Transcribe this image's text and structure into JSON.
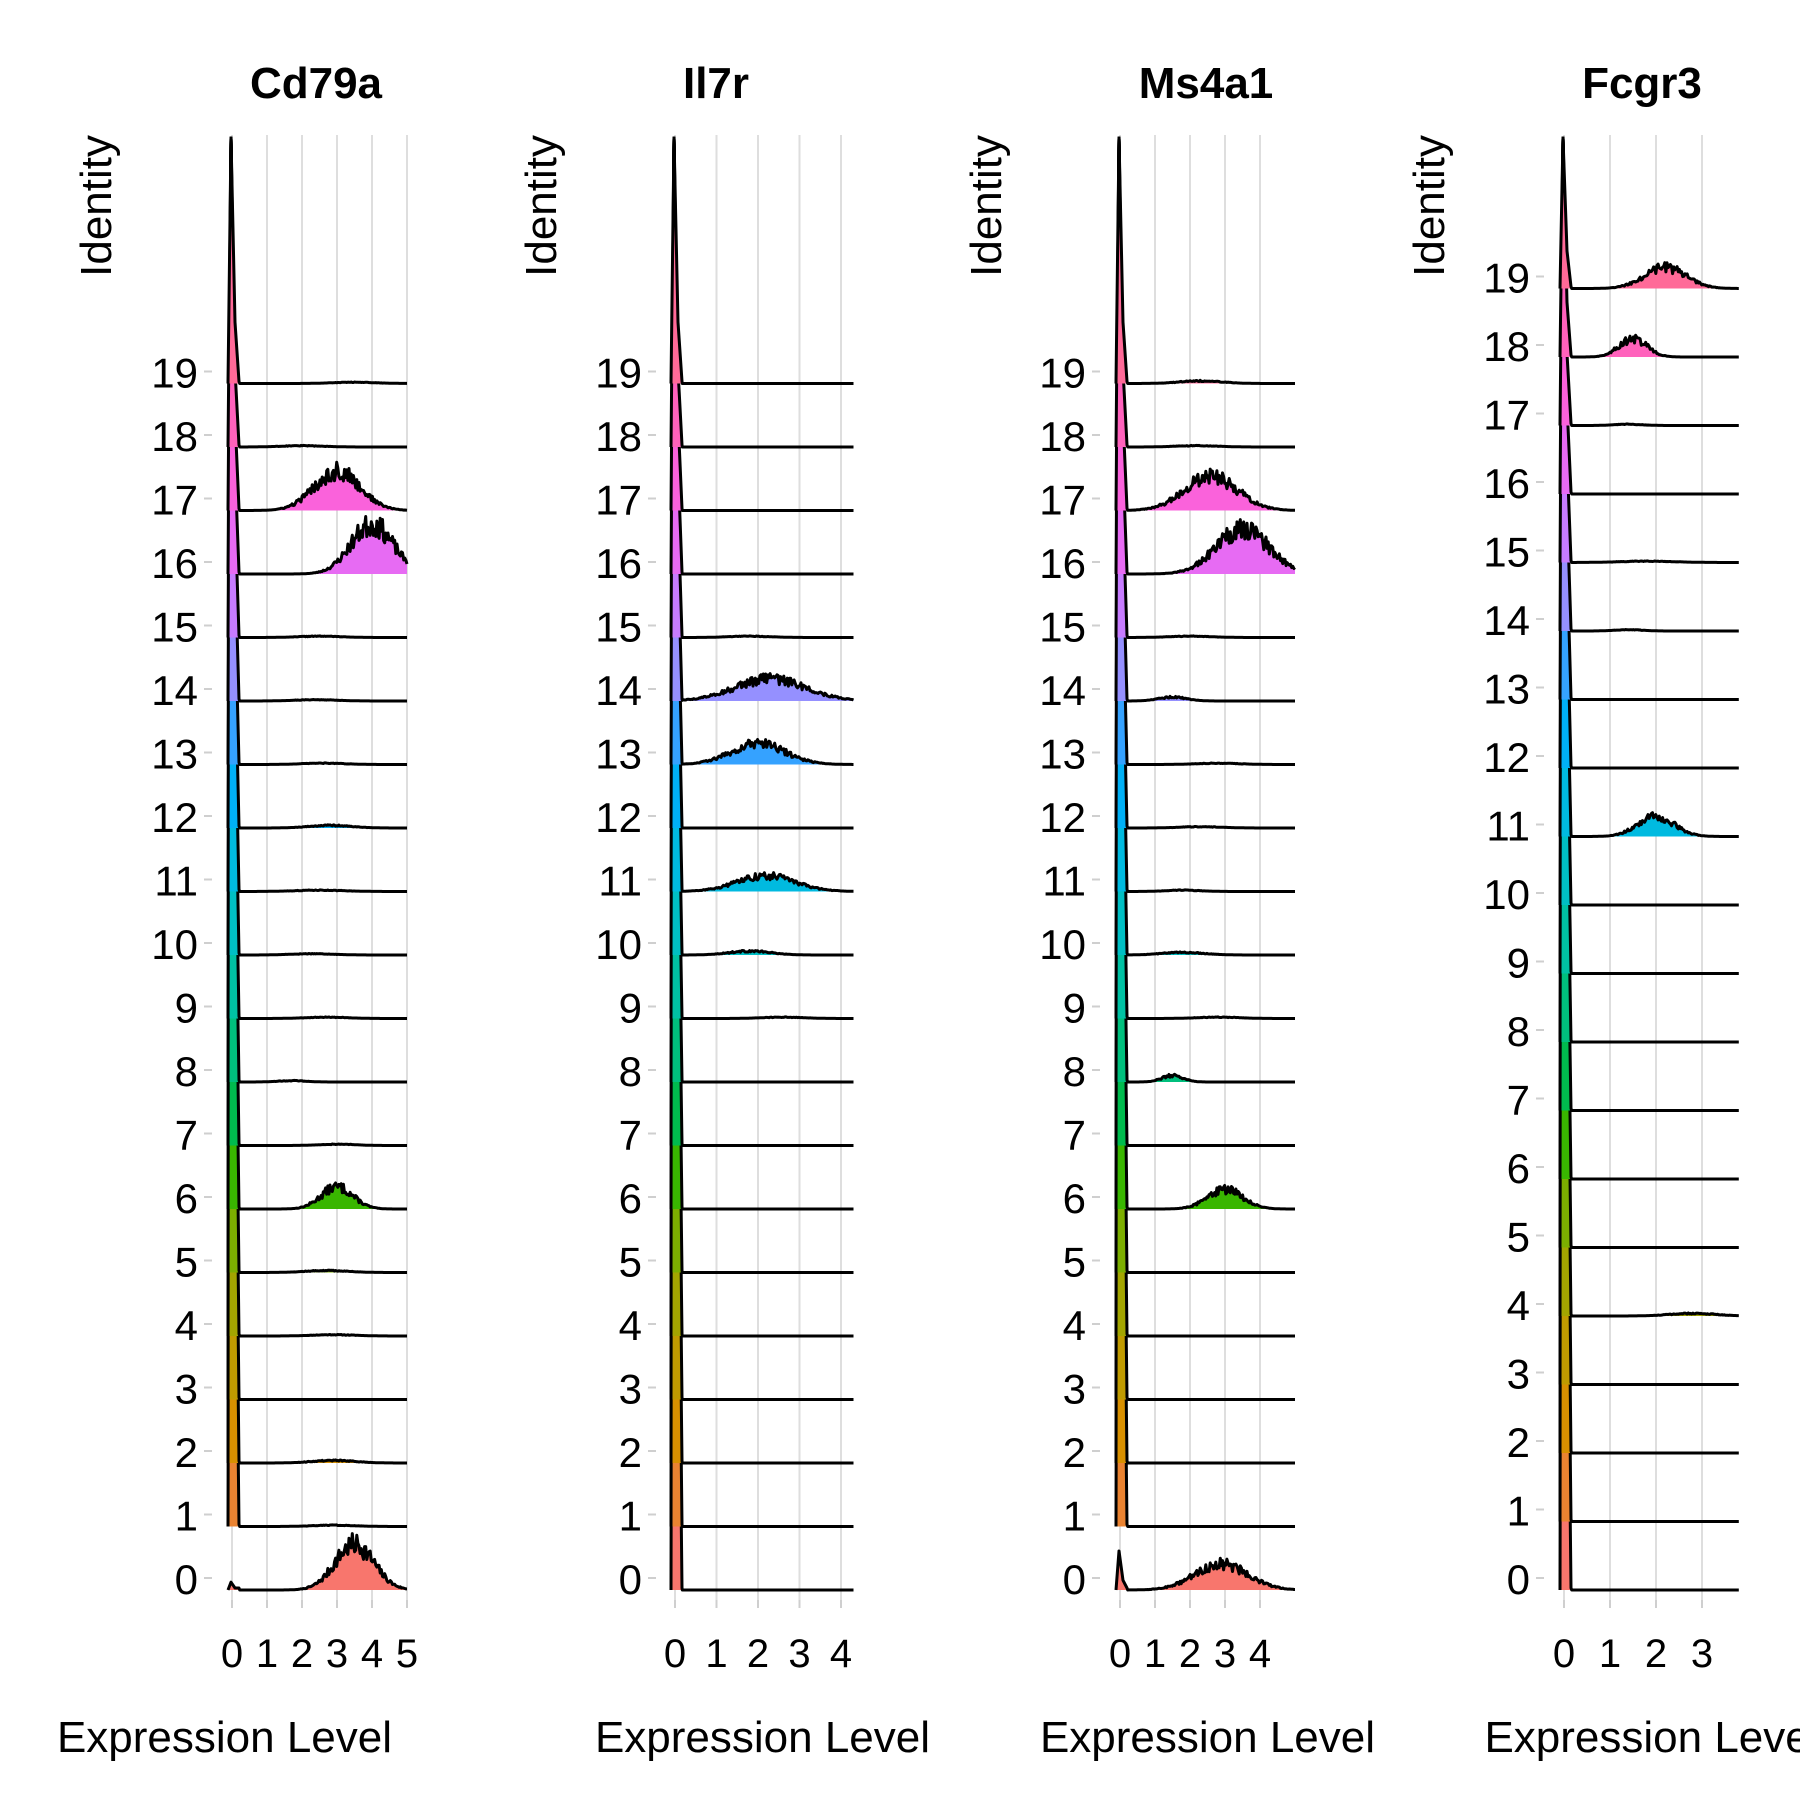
{
  "chart_data": [
    {
      "type": "ridgeline",
      "title": "Cd79a",
      "xlabel": "Expression Level",
      "ylabel": "Identity",
      "xlim": [
        -0.1,
        5.0
      ],
      "xticks": [
        "0",
        "1",
        "2",
        "3",
        "4",
        "5"
      ],
      "xgrid": true,
      "categories": [
        "0",
        "1",
        "2",
        "3",
        "4",
        "5",
        "6",
        "7",
        "8",
        "9",
        "10",
        "11",
        "12",
        "13",
        "14",
        "15",
        "16",
        "17",
        "18",
        "19"
      ],
      "series": [
        {
          "identity": "0",
          "zero_peak": 0.06,
          "bumps": [
            {
              "c": 3.5,
              "s": 0.55,
              "h": 0.35
            }
          ]
        },
        {
          "identity": "1",
          "zero_peak": 1.0,
          "bumps": [
            {
              "c": 2.9,
              "s": 0.6,
              "h": 0.01
            }
          ]
        },
        {
          "identity": "2",
          "zero_peak": 1.0,
          "bumps": [
            {
              "c": 2.9,
              "s": 0.6,
              "h": 0.02
            }
          ]
        },
        {
          "identity": "3",
          "zero_peak": 1.0,
          "bumps": []
        },
        {
          "identity": "4",
          "zero_peak": 1.0,
          "bumps": [
            {
              "c": 2.9,
              "s": 0.6,
              "h": 0.01
            }
          ]
        },
        {
          "identity": "5",
          "zero_peak": 1.0,
          "bumps": [
            {
              "c": 2.7,
              "s": 0.6,
              "h": 0.015
            }
          ]
        },
        {
          "identity": "6",
          "zero_peak": 1.0,
          "bumps": [
            {
              "c": 3.0,
              "s": 0.45,
              "h": 0.17
            }
          ]
        },
        {
          "identity": "7",
          "zero_peak": 1.0,
          "bumps": [
            {
              "c": 3.0,
              "s": 0.5,
              "h": 0.01
            }
          ]
        },
        {
          "identity": "8",
          "zero_peak": 1.0,
          "bumps": [
            {
              "c": 1.7,
              "s": 0.4,
              "h": 0.01
            }
          ]
        },
        {
          "identity": "9",
          "zero_peak": 1.0,
          "bumps": [
            {
              "c": 2.7,
              "s": 0.6,
              "h": 0.01
            }
          ]
        },
        {
          "identity": "10",
          "zero_peak": 1.0,
          "bumps": [
            {
              "c": 2.3,
              "s": 0.6,
              "h": 0.01
            }
          ]
        },
        {
          "identity": "11",
          "zero_peak": 1.0,
          "bumps": [
            {
              "c": 2.5,
              "s": 0.7,
              "h": 0.01
            }
          ]
        },
        {
          "identity": "12",
          "zero_peak": 1.0,
          "bumps": [
            {
              "c": 2.8,
              "s": 0.6,
              "h": 0.02
            }
          ]
        },
        {
          "identity": "13",
          "zero_peak": 1.0,
          "bumps": [
            {
              "c": 2.6,
              "s": 0.6,
              "h": 0.01
            }
          ]
        },
        {
          "identity": "14",
          "zero_peak": 1.0,
          "bumps": [
            {
              "c": 2.4,
              "s": 0.6,
              "h": 0.01
            }
          ]
        },
        {
          "identity": "15",
          "zero_peak": 1.0,
          "bumps": [
            {
              "c": 2.5,
              "s": 0.6,
              "h": 0.01
            }
          ]
        },
        {
          "identity": "16",
          "zero_peak": 1.0,
          "bumps": [
            {
              "c": 4.0,
              "s": 0.6,
              "h": 0.38
            }
          ]
        },
        {
          "identity": "17",
          "zero_peak": 1.0,
          "bumps": [
            {
              "c": 3.0,
              "s": 0.65,
              "h": 0.3
            }
          ]
        },
        {
          "identity": "18",
          "zero_peak": 1.0,
          "bumps": [
            {
              "c": 2.0,
              "s": 0.6,
              "h": 0.01
            }
          ]
        },
        {
          "identity": "19",
          "zero_peak": 1.0,
          "bumps": [
            {
              "c": 3.5,
              "s": 0.6,
              "h": 0.01
            }
          ]
        }
      ]
    },
    {
      "type": "ridgeline",
      "title": "Il7r",
      "xlabel": "Expression Level",
      "ylabel": "Identity",
      "xlim": [
        -0.1,
        4.3
      ],
      "xticks": [
        "0",
        "1",
        "2",
        "3",
        "4"
      ],
      "xgrid": true,
      "categories": [
        "0",
        "1",
        "2",
        "3",
        "4",
        "5",
        "6",
        "7",
        "8",
        "9",
        "10",
        "11",
        "12",
        "13",
        "14",
        "15",
        "16",
        "17",
        "18",
        "19"
      ],
      "series": [
        {
          "identity": "0",
          "zero_peak": 1.0,
          "bumps": []
        },
        {
          "identity": "1",
          "zero_peak": 1.0,
          "bumps": []
        },
        {
          "identity": "2",
          "zero_peak": 1.0,
          "bumps": []
        },
        {
          "identity": "3",
          "zero_peak": 1.0,
          "bumps": []
        },
        {
          "identity": "4",
          "zero_peak": 1.0,
          "bumps": []
        },
        {
          "identity": "5",
          "zero_peak": 1.0,
          "bumps": []
        },
        {
          "identity": "6",
          "zero_peak": 1.0,
          "bumps": []
        },
        {
          "identity": "7",
          "zero_peak": 1.0,
          "bumps": []
        },
        {
          "identity": "8",
          "zero_peak": 1.0,
          "bumps": []
        },
        {
          "identity": "9",
          "zero_peak": 1.0,
          "bumps": [
            {
              "c": 2.6,
              "s": 0.5,
              "h": 0.01
            }
          ]
        },
        {
          "identity": "10",
          "zero_peak": 1.0,
          "bumps": [
            {
              "c": 1.8,
              "s": 0.5,
              "h": 0.03
            }
          ]
        },
        {
          "identity": "11",
          "zero_peak": 1.0,
          "bumps": [
            {
              "c": 2.2,
              "s": 0.7,
              "h": 0.12
            }
          ]
        },
        {
          "identity": "12",
          "zero_peak": 1.0,
          "bumps": []
        },
        {
          "identity": "13",
          "zero_peak": 1.0,
          "bumps": [
            {
              "c": 2.0,
              "s": 0.65,
              "h": 0.16
            }
          ]
        },
        {
          "identity": "14",
          "zero_peak": 1.0,
          "bumps": [
            {
              "c": 2.3,
              "s": 0.85,
              "h": 0.17
            }
          ]
        },
        {
          "identity": "15",
          "zero_peak": 1.0,
          "bumps": [
            {
              "c": 1.8,
              "s": 0.5,
              "h": 0.01
            }
          ]
        },
        {
          "identity": "16",
          "zero_peak": 1.0,
          "bumps": []
        },
        {
          "identity": "17",
          "zero_peak": 1.0,
          "bumps": []
        },
        {
          "identity": "18",
          "zero_peak": 1.0,
          "bumps": []
        },
        {
          "identity": "19",
          "zero_peak": 1.0,
          "bumps": []
        }
      ]
    },
    {
      "type": "ridgeline",
      "title": "Ms4a1",
      "xlabel": "Expression Level",
      "ylabel": "Identity",
      "xlim": [
        -0.1,
        5.0
      ],
      "xticks": [
        "0",
        "1",
        "2",
        "3",
        "4"
      ],
      "xgrid": true,
      "categories": [
        "0",
        "1",
        "2",
        "3",
        "4",
        "5",
        "6",
        "7",
        "8",
        "9",
        "10",
        "11",
        "12",
        "13",
        "14",
        "15",
        "16",
        "17",
        "18",
        "19"
      ],
      "series": [
        {
          "identity": "0",
          "zero_peak": 0.3,
          "bumps": [
            {
              "c": 2.9,
              "s": 0.75,
              "h": 0.2
            }
          ]
        },
        {
          "identity": "1",
          "zero_peak": 1.0,
          "bumps": []
        },
        {
          "identity": "2",
          "zero_peak": 1.0,
          "bumps": []
        },
        {
          "identity": "3",
          "zero_peak": 1.0,
          "bumps": []
        },
        {
          "identity": "4",
          "zero_peak": 1.0,
          "bumps": []
        },
        {
          "identity": "5",
          "zero_peak": 1.0,
          "bumps": []
        },
        {
          "identity": "6",
          "zero_peak": 1.0,
          "bumps": [
            {
              "c": 3.0,
              "s": 0.5,
              "h": 0.15
            }
          ]
        },
        {
          "identity": "7",
          "zero_peak": 1.0,
          "bumps": []
        },
        {
          "identity": "8",
          "zero_peak": 1.0,
          "bumps": [
            {
              "c": 1.5,
              "s": 0.3,
              "h": 0.05
            }
          ]
        },
        {
          "identity": "9",
          "zero_peak": 1.0,
          "bumps": [
            {
              "c": 2.8,
              "s": 0.6,
              "h": 0.01
            }
          ]
        },
        {
          "identity": "10",
          "zero_peak": 1.0,
          "bumps": [
            {
              "c": 1.8,
              "s": 0.6,
              "h": 0.02
            }
          ]
        },
        {
          "identity": "11",
          "zero_peak": 1.0,
          "bumps": [
            {
              "c": 1.8,
              "s": 0.5,
              "h": 0.01
            }
          ]
        },
        {
          "identity": "12",
          "zero_peak": 1.0,
          "bumps": [
            {
              "c": 2.3,
              "s": 0.6,
              "h": 0.01
            }
          ]
        },
        {
          "identity": "13",
          "zero_peak": 1.0,
          "bumps": [
            {
              "c": 2.8,
              "s": 0.6,
              "h": 0.01
            }
          ]
        },
        {
          "identity": "14",
          "zero_peak": 1.0,
          "bumps": [
            {
              "c": 1.5,
              "s": 0.4,
              "h": 0.03
            }
          ]
        },
        {
          "identity": "15",
          "zero_peak": 1.0,
          "bumps": [
            {
              "c": 2.0,
              "s": 0.6,
              "h": 0.01
            }
          ]
        },
        {
          "identity": "16",
          "zero_peak": 1.0,
          "bumps": [
            {
              "c": 3.5,
              "s": 0.75,
              "h": 0.34
            }
          ]
        },
        {
          "identity": "17",
          "zero_peak": 1.0,
          "bumps": [
            {
              "c": 2.6,
              "s": 0.75,
              "h": 0.26
            }
          ]
        },
        {
          "identity": "18",
          "zero_peak": 1.0,
          "bumps": [
            {
              "c": 2.2,
              "s": 0.6,
              "h": 0.01
            }
          ]
        },
        {
          "identity": "19",
          "zero_peak": 1.0,
          "bumps": [
            {
              "c": 2.3,
              "s": 0.6,
              "h": 0.02
            }
          ]
        }
      ]
    },
    {
      "type": "ridgeline",
      "title": "Fcgr3",
      "xlabel": "Expression Level",
      "ylabel": "Identity",
      "xlim": [
        -0.1,
        3.8
      ],
      "xticks": [
        "0",
        "1",
        "2",
        "3"
      ],
      "xgrid": true,
      "categories": [
        "0",
        "1",
        "2",
        "3",
        "4",
        "5",
        "6",
        "7",
        "8",
        "9",
        "10",
        "11",
        "12",
        "13",
        "14",
        "15",
        "16",
        "17",
        "18",
        "19"
      ],
      "series": [
        {
          "identity": "0",
          "zero_peak": 1.0,
          "bumps": []
        },
        {
          "identity": "1",
          "zero_peak": 1.0,
          "bumps": []
        },
        {
          "identity": "2",
          "zero_peak": 1.0,
          "bumps": []
        },
        {
          "identity": "3",
          "zero_peak": 1.0,
          "bumps": []
        },
        {
          "identity": "4",
          "zero_peak": 1.0,
          "bumps": [
            {
              "c": 2.8,
              "s": 0.5,
              "h": 0.02
            }
          ]
        },
        {
          "identity": "5",
          "zero_peak": 1.0,
          "bumps": []
        },
        {
          "identity": "6",
          "zero_peak": 1.0,
          "bumps": []
        },
        {
          "identity": "7",
          "zero_peak": 1.0,
          "bumps": []
        },
        {
          "identity": "8",
          "zero_peak": 1.0,
          "bumps": []
        },
        {
          "identity": "9",
          "zero_peak": 1.0,
          "bumps": []
        },
        {
          "identity": "10",
          "zero_peak": 1.0,
          "bumps": []
        },
        {
          "identity": "11",
          "zero_peak": 1.0,
          "bumps": [
            {
              "c": 2.0,
              "s": 0.4,
              "h": 0.15
            }
          ]
        },
        {
          "identity": "12",
          "zero_peak": 1.0,
          "bumps": []
        },
        {
          "identity": "13",
          "zero_peak": 1.0,
          "bumps": []
        },
        {
          "identity": "14",
          "zero_peak": 1.0,
          "bumps": [
            {
              "c": 1.4,
              "s": 0.3,
              "h": 0.01
            }
          ]
        },
        {
          "identity": "15",
          "zero_peak": 1.0,
          "bumps": [
            {
              "c": 1.8,
              "s": 0.6,
              "h": 0.01
            }
          ]
        },
        {
          "identity": "16",
          "zero_peak": 1.0,
          "bumps": []
        },
        {
          "identity": "17",
          "zero_peak": 1.0,
          "bumps": [
            {
              "c": 1.4,
              "s": 0.3,
              "h": 0.01
            }
          ]
        },
        {
          "identity": "18",
          "zero_peak": 1.0,
          "bumps": [
            {
              "c": 1.5,
              "s": 0.3,
              "h": 0.14
            }
          ]
        },
        {
          "identity": "19",
          "zero_peak": 1.0,
          "bumps": [
            {
              "c": 2.2,
              "s": 0.45,
              "h": 0.16
            }
          ]
        }
      ]
    }
  ],
  "palette": [
    "#F8766D",
    "#EA8331",
    "#D89000",
    "#C09B00",
    "#A3A500",
    "#7CAE00",
    "#39B600",
    "#00BB4E",
    "#00BF7D",
    "#00C1A3",
    "#00BFC4",
    "#00BAE0",
    "#00B0F6",
    "#35A2FF",
    "#9590FF",
    "#C77CFF",
    "#E76BF3",
    "#FA62DB",
    "#FF62BC",
    "#FF6A98"
  ]
}
